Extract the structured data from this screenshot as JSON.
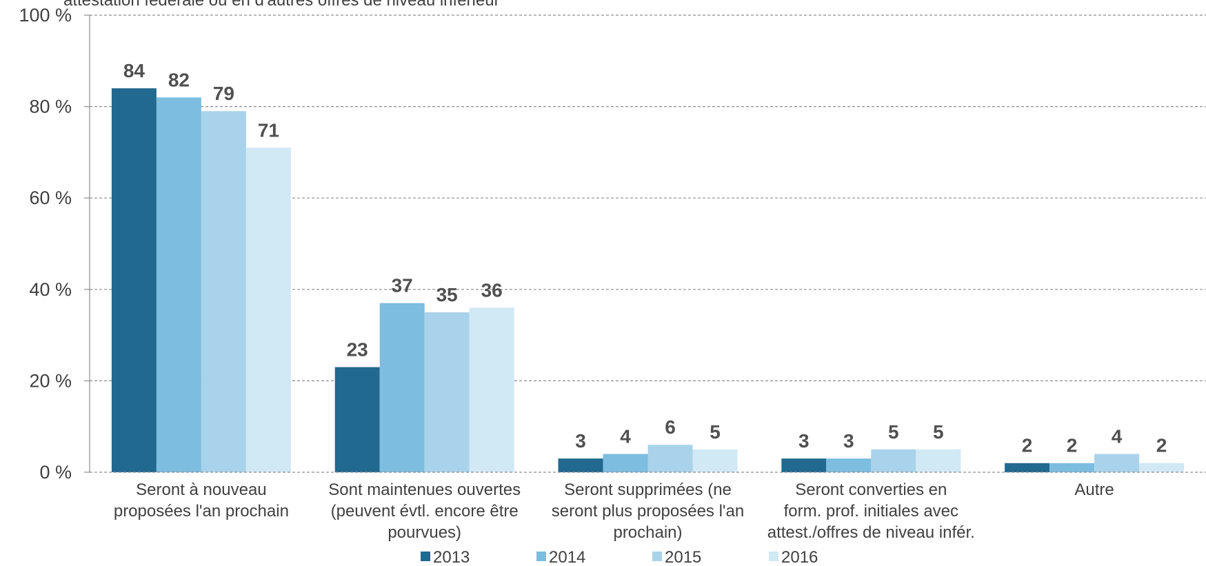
{
  "chart_data": {
    "type": "bar",
    "subtitle": "attestation fédérale ou en d'autres offres de niveau inférieur",
    "categories": [
      [
        "Seront à nouveau",
        "proposées l'an prochain"
      ],
      [
        "Sont maintenues ouvertes",
        "(peuvent évtl. encore être",
        "pourvues)"
      ],
      [
        "Seront supprimées (ne",
        "seront plus proposées l'an",
        "prochain)"
      ],
      [
        "Seront converties en",
        "form. prof. initiales avec",
        "attest./offres de niveau infér."
      ],
      [
        "Autre"
      ]
    ],
    "series": [
      {
        "name": "2013",
        "color": "#226990",
        "values": [
          84,
          23,
          3,
          3,
          2
        ]
      },
      {
        "name": "2014",
        "color": "#7dbde0",
        "values": [
          82,
          37,
          4,
          3,
          2
        ]
      },
      {
        "name": "2015",
        "color": "#a9d3ea",
        "values": [
          79,
          35,
          6,
          5,
          4
        ]
      },
      {
        "name": "2016",
        "color": "#d1e8f5",
        "values": [
          71,
          36,
          5,
          5,
          2
        ]
      }
    ],
    "y_ticks": [
      "0 %",
      "20 %",
      "40 %",
      "60 %",
      "80 %",
      "100 %"
    ],
    "ylim": [
      0,
      100
    ],
    "grid": true,
    "legend_position": "bottom"
  }
}
